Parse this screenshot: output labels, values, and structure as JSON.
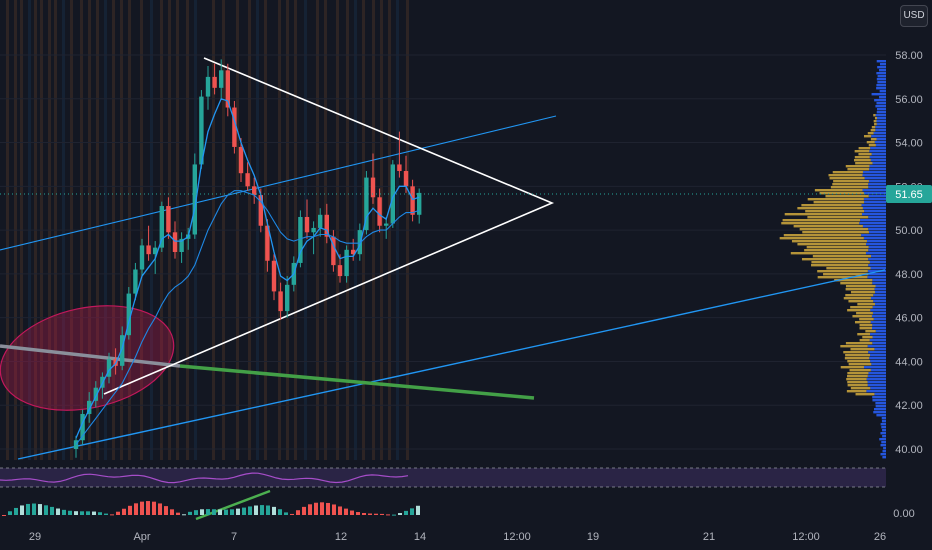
{
  "currency": "USD",
  "last_price": "51.65",
  "colors": {
    "background": "#131722",
    "up": "#26a69a",
    "down": "#ef5350",
    "vp_buy": "#2962ff",
    "vp_sell": "#c8a23c",
    "session_stripe": "#e07b39",
    "trend_blue": "#2196f3",
    "trend_green": "#4caf50",
    "triangle": "#ffffff",
    "ellipse": "#b71c4c"
  },
  "chart_data": {
    "type": "candlestick",
    "x_tick_labels": [
      "29",
      "Apr",
      "7",
      "12",
      "14",
      "12:00",
      "19",
      "21",
      "12:00",
      "26"
    ],
    "y_tick_labels": [
      "58.00",
      "56.00",
      "54.00",
      "52.00",
      "50.00",
      "48.00",
      "46.00",
      "44.00",
      "42.00",
      "40.00"
    ],
    "ylim": [
      39.5,
      58.5
    ],
    "oscillator_tick_label": "0.00",
    "ohlc": [
      [
        40.0,
        40.6,
        39.6,
        40.4
      ],
      [
        40.4,
        41.8,
        40.2,
        41.6
      ],
      [
        41.6,
        42.6,
        41.2,
        42.2
      ],
      [
        42.2,
        43.1,
        41.9,
        42.8
      ],
      [
        42.8,
        43.5,
        42.3,
        43.3
      ],
      [
        43.3,
        44.4,
        43.0,
        44.1
      ],
      [
        44.1,
        44.6,
        43.4,
        43.8
      ],
      [
        43.8,
        45.6,
        43.6,
        45.2
      ],
      [
        45.2,
        47.4,
        45.0,
        47.1
      ],
      [
        47.1,
        48.5,
        46.8,
        48.2
      ],
      [
        48.2,
        49.6,
        47.9,
        49.3
      ],
      [
        49.3,
        50.2,
        48.6,
        48.9
      ],
      [
        48.9,
        49.5,
        48.0,
        49.2
      ],
      [
        49.2,
        51.3,
        49.0,
        51.1
      ],
      [
        51.1,
        51.5,
        49.6,
        49.9
      ],
      [
        49.9,
        50.4,
        48.7,
        49.0
      ],
      [
        49.0,
        49.9,
        48.5,
        49.6
      ],
      [
        49.6,
        50.1,
        49.1,
        49.8
      ],
      [
        49.8,
        53.5,
        49.6,
        53.0
      ],
      [
        53.0,
        56.4,
        52.8,
        56.1
      ],
      [
        56.1,
        57.5,
        55.5,
        57.0
      ],
      [
        57.0,
        57.6,
        56.2,
        56.5
      ],
      [
        56.5,
        57.8,
        56.0,
        57.3
      ],
      [
        57.3,
        57.6,
        55.2,
        55.6
      ],
      [
        55.6,
        55.9,
        53.5,
        53.8
      ],
      [
        53.8,
        54.2,
        52.2,
        52.6
      ],
      [
        52.6,
        53.1,
        51.8,
        52.0
      ],
      [
        52.0,
        52.4,
        51.2,
        51.6
      ],
      [
        51.6,
        51.9,
        49.9,
        50.2
      ],
      [
        50.2,
        50.5,
        48.1,
        48.6
      ],
      [
        48.6,
        48.9,
        46.8,
        47.2
      ],
      [
        47.2,
        47.6,
        45.9,
        46.3
      ],
      [
        46.3,
        47.9,
        46.0,
        47.5
      ],
      [
        47.5,
        48.8,
        47.2,
        48.5
      ],
      [
        48.5,
        50.9,
        48.3,
        50.6
      ],
      [
        50.6,
        51.4,
        49.6,
        49.9
      ],
      [
        49.9,
        50.4,
        48.9,
        50.1
      ],
      [
        50.1,
        51.0,
        49.7,
        50.7
      ],
      [
        50.7,
        51.2,
        49.4,
        49.7
      ],
      [
        49.7,
        50.0,
        48.1,
        48.4
      ],
      [
        48.4,
        48.9,
        47.6,
        47.9
      ],
      [
        47.9,
        49.3,
        47.6,
        49.1
      ],
      [
        49.1,
        49.6,
        48.6,
        48.9
      ],
      [
        48.9,
        50.3,
        48.6,
        50.0
      ],
      [
        50.0,
        52.7,
        49.8,
        52.4
      ],
      [
        52.4,
        53.5,
        51.2,
        51.5
      ],
      [
        51.5,
        51.9,
        49.9,
        50.2
      ],
      [
        50.2,
        50.6,
        49.6,
        50.3
      ],
      [
        50.3,
        53.2,
        50.1,
        53.0
      ],
      [
        53.0,
        54.5,
        52.4,
        52.7
      ],
      [
        52.7,
        53.4,
        51.7,
        52.0
      ],
      [
        52.0,
        52.3,
        50.4,
        50.7
      ],
      [
        50.7,
        51.9,
        50.3,
        51.7
      ]
    ],
    "ema_fast": [
      40.5,
      41.2,
      41.8,
      42.4,
      43.0,
      43.6,
      43.9,
      44.6,
      45.8,
      46.9,
      47.9,
      48.3,
      48.7,
      49.6,
      49.8,
      49.5,
      49.5,
      49.7,
      51.0,
      53.0,
      54.5,
      55.3,
      56.0,
      55.9,
      55.0,
      54.0,
      53.2,
      52.5,
      51.6,
      50.3,
      49.0,
      47.9,
      47.7,
      48.0,
      49.0,
      49.5,
      49.7,
      50.1,
      50.0,
      49.3,
      48.7,
      48.8,
      48.8,
      49.3,
      50.6,
      51.0,
      50.7,
      50.5,
      51.5,
      52.0,
      52.0,
      51.4,
      51.5
    ],
    "ema_slow": [
      40.2,
      40.6,
      41.0,
      41.4,
      41.8,
      42.2,
      42.6,
      43.0,
      43.6,
      44.2,
      44.9,
      45.5,
      46.0,
      46.6,
      47.1,
      47.4,
      47.6,
      47.9,
      48.4,
      49.2,
      50.0,
      50.6,
      51.2,
      51.6,
      51.8,
      51.8,
      51.7,
      51.6,
      51.3,
      50.9,
      50.4,
      49.9,
      49.6,
      49.5,
      49.6,
      49.7,
      49.7,
      49.8,
      49.8,
      49.7,
      49.5,
      49.4,
      49.4,
      49.4,
      49.7,
      49.9,
      50.0,
      50.0,
      50.3,
      50.6,
      50.8,
      50.8,
      50.9
    ]
  }
}
